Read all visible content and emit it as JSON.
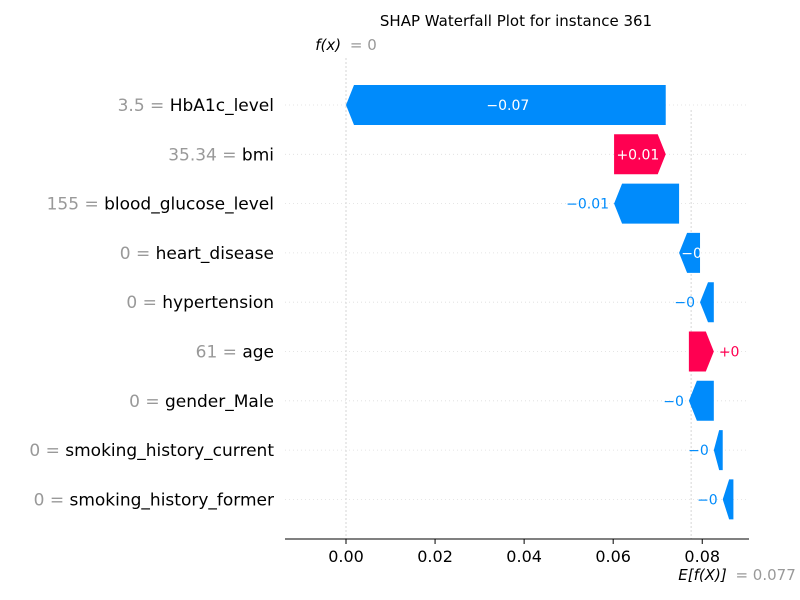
{
  "chart_data": {
    "type": "waterfall",
    "title": "SHAP Waterfall Plot for instance 361",
    "fx_label": "f(x)",
    "fx_value": "= 0",
    "fx_numeric": 0,
    "ex_label": "E[f(X)]",
    "ex_value": "= 0.077",
    "ex_numeric": 0.0775,
    "xlim": [
      -0.0137,
      0.0905
    ],
    "xticks": [
      {
        "value": 0.0,
        "label": "0.00"
      },
      {
        "value": 0.02,
        "label": "0.02"
      },
      {
        "value": 0.04,
        "label": "0.04"
      },
      {
        "value": 0.06,
        "label": "0.06"
      },
      {
        "value": 0.08,
        "label": "0.08"
      }
    ],
    "colors": {
      "negative": "#008bfb",
      "positive": "#ff0051",
      "feature_value": "#999999",
      "feature_name": "#000000"
    },
    "features": [
      {
        "value": "3.5",
        "name": "HbA1c_level",
        "start": 0.0,
        "end": 0.0718,
        "label": "−0.07",
        "sign": "neg",
        "label_inside": true
      },
      {
        "value": "35.34",
        "name": "bmi",
        "start": 0.0602,
        "end": 0.0718,
        "label": "+0.01",
        "sign": "pos",
        "label_inside": true
      },
      {
        "value": "155",
        "name": "blood_glucose_level",
        "start": 0.0602,
        "end": 0.0748,
        "label": "−0.01",
        "sign": "neg",
        "label_inside": false
      },
      {
        "value": "0",
        "name": "heart_disease",
        "start": 0.0748,
        "end": 0.0795,
        "label": "−0",
        "sign": "neg",
        "label_inside": true
      },
      {
        "value": "0",
        "name": "hypertension",
        "start": 0.0795,
        "end": 0.0826,
        "label": "−0",
        "sign": "neg",
        "label_inside": false
      },
      {
        "value": "61",
        "name": "age",
        "start": 0.077,
        "end": 0.0826,
        "label": "+0",
        "sign": "pos",
        "label_inside": false
      },
      {
        "value": "0",
        "name": "gender_Male",
        "start": 0.077,
        "end": 0.0826,
        "label": "−0",
        "sign": "neg",
        "label_inside": false
      },
      {
        "value": "0",
        "name": "smoking_history_current",
        "start": 0.0826,
        "end": 0.0846,
        "label": "−0",
        "sign": "neg",
        "label_inside": false
      },
      {
        "value": "0",
        "name": "smoking_history_former",
        "start": 0.0846,
        "end": 0.087,
        "label": "−0",
        "sign": "neg",
        "label_inside": false
      }
    ]
  }
}
